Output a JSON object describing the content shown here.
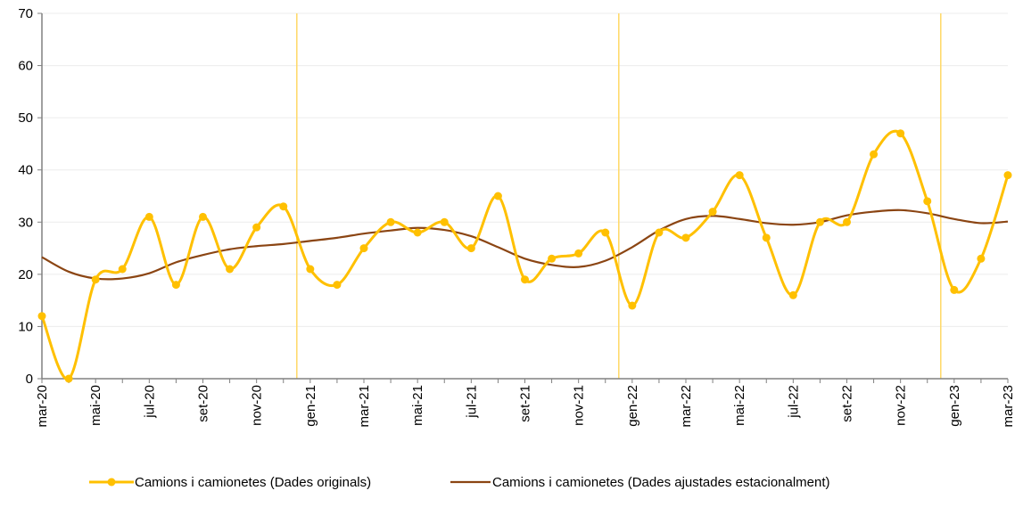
{
  "chart_data": {
    "type": "line",
    "categories": [
      "mar-20",
      "abr-20",
      "mai-20",
      "jun-20",
      "jul-20",
      "ago-20",
      "set-20",
      "oct-20",
      "nov-20",
      "des-20",
      "gen-21",
      "feb-21",
      "mar-21",
      "abr-21",
      "mai-21",
      "jun-21",
      "jul-21",
      "ago-21",
      "set-21",
      "oct-21",
      "nov-21",
      "des-21",
      "gen-22",
      "feb-22",
      "mar-22",
      "abr-22",
      "mai-22",
      "jun-22",
      "jul-22",
      "ago-22",
      "set-22",
      "oct-22",
      "nov-22",
      "des-22",
      "gen-23",
      "feb-23",
      "mar-23"
    ],
    "tick_labels": [
      "mar-20",
      "mai-20",
      "jul-20",
      "set-20",
      "nov-20",
      "gen-21",
      "mar-21",
      "mai-21",
      "jul-21",
      "set-21",
      "nov-21",
      "gen-22",
      "mar-22",
      "mai-22",
      "jul-22",
      "set-22",
      "nov-22",
      "gen-23",
      "mar-23"
    ],
    "series": [
      {
        "name": "Camions i camionetes (Dades originals)",
        "color": "#FFC000",
        "markers": true,
        "smooth": true,
        "values": [
          12,
          0,
          19,
          21,
          31,
          18,
          31,
          21,
          29,
          33,
          21,
          18,
          25,
          30,
          28,
          30,
          25,
          35,
          19,
          23,
          24,
          28,
          14,
          28,
          27,
          32,
          39,
          27,
          16,
          30,
          30,
          43,
          47,
          34,
          17,
          23,
          39
        ]
      },
      {
        "name": "Camions i camionetes (Dades ajustades estacionalment)",
        "color": "#8B4513",
        "markers": false,
        "smooth": true,
        "values": [
          23.3,
          20.5,
          19.2,
          19.2,
          20.2,
          22.3,
          23.7,
          24.8,
          25.4,
          25.8,
          26.4,
          27.0,
          27.8,
          28.4,
          28.9,
          28.5,
          27.3,
          25.2,
          23.0,
          21.8,
          21.4,
          22.6,
          25.2,
          28.4,
          30.6,
          31.2,
          30.6,
          29.8,
          29.5,
          30.0,
          31.3,
          32.0,
          32.3,
          31.7,
          30.6,
          29.8,
          30.1
        ]
      }
    ],
    "vertical_lines_after": [
      "des-20",
      "des-21",
      "des-22"
    ],
    "ylim": [
      0,
      70
    ],
    "yticks": [
      "0",
      "10",
      "20",
      "30",
      "40",
      "50",
      "60",
      "70"
    ],
    "grid": true,
    "legend_position": "bottom"
  }
}
